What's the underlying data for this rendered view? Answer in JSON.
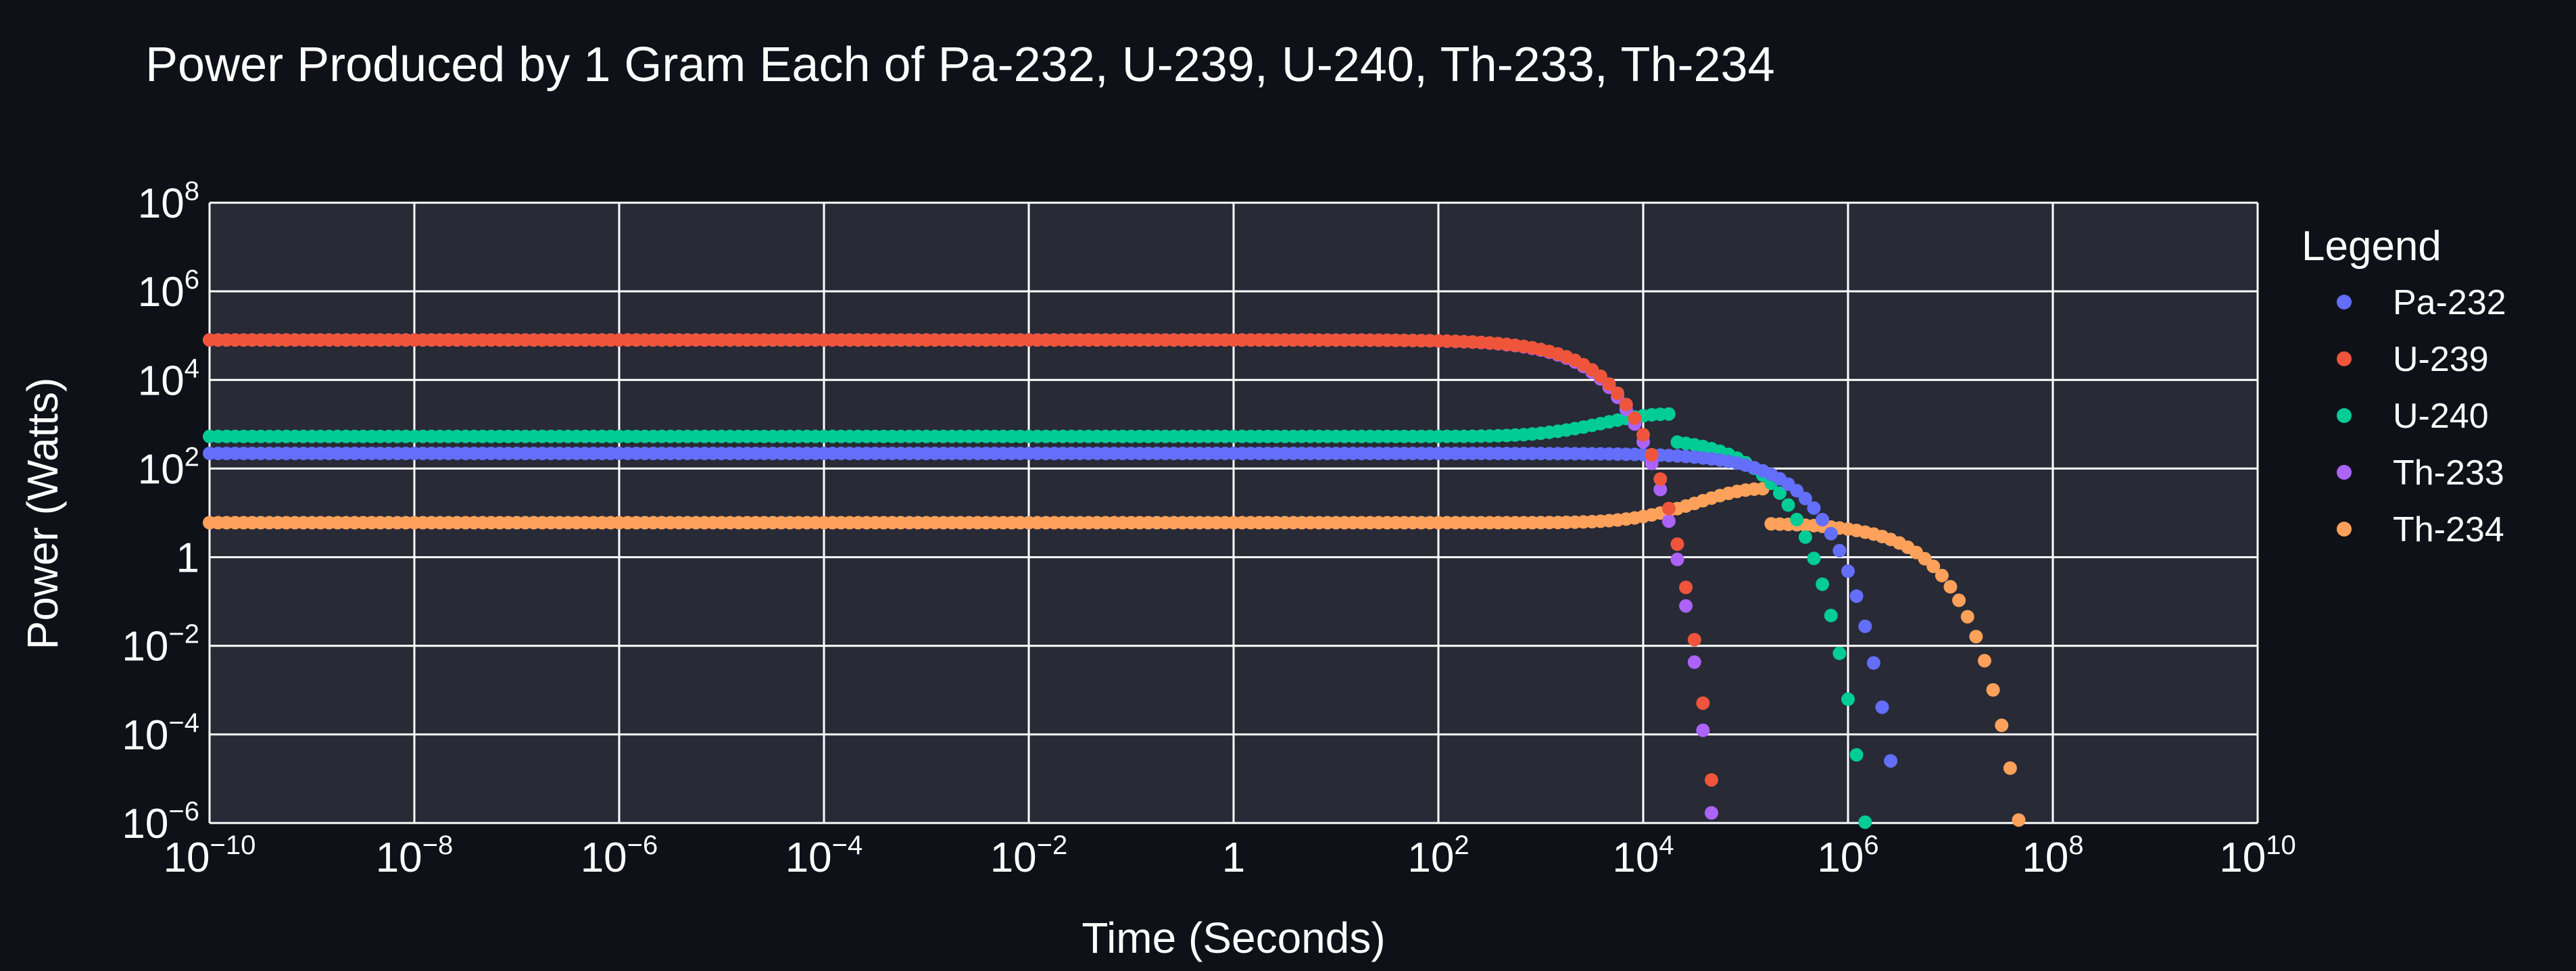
{
  "chart_data": {
    "type": "scatter",
    "title": "Power Produced by 1 Gram Each of Pa-232, U-239, U-240, Th-233, Th-234",
    "xlabel": "Time (Seconds)",
    "ylabel": "Power (Watts)",
    "x_scale": "log",
    "y_scale": "log",
    "xlim": [
      1e-10,
      10000000000.0
    ],
    "ylim": [
      1e-06,
      100000000.0
    ],
    "grid": true,
    "legend_title": "Legend",
    "legend_position": "right",
    "x_ticks": [
      {
        "base": "10",
        "exp": "−10"
      },
      {
        "base": "10",
        "exp": "−8"
      },
      {
        "base": "10",
        "exp": "−6"
      },
      {
        "base": "10",
        "exp": "−4"
      },
      {
        "base": "10",
        "exp": "−2"
      },
      {
        "base": "1",
        "exp": ""
      },
      {
        "base": "10",
        "exp": "2"
      },
      {
        "base": "10",
        "exp": "4"
      },
      {
        "base": "10",
        "exp": "6"
      },
      {
        "base": "10",
        "exp": "8"
      },
      {
        "base": "10",
        "exp": "10"
      }
    ],
    "y_ticks": [
      {
        "base": "10",
        "exp": "−6"
      },
      {
        "base": "10",
        "exp": "−4"
      },
      {
        "base": "10",
        "exp": "−2"
      },
      {
        "base": "1",
        "exp": ""
      },
      {
        "base": "10",
        "exp": "2"
      },
      {
        "base": "10",
        "exp": "4"
      },
      {
        "base": "10",
        "exp": "6"
      },
      {
        "base": "10",
        "exp": "8"
      }
    ],
    "series": [
      {
        "name": "Pa-232",
        "color": "#636efa",
        "initial_power_w": 220,
        "half_life_s": 113200
      },
      {
        "name": "U-239",
        "color": "#ef553b",
        "initial_power_w": 80000,
        "half_life_s": 1407
      },
      {
        "name": "U-240",
        "color": "#00cc96",
        "initial_power_w": 530,
        "half_life_s": 50760
      },
      {
        "name": "Th-233",
        "color": "#ab63fa",
        "initial_power_w": 80000,
        "half_life_s": 1309
      },
      {
        "name": "Th-234",
        "color": "#ffa15a",
        "initial_power_w": 6,
        "half_life_s": 2082000
      }
    ],
    "notes_visible": [],
    "sampling": {
      "log10_t_start": -10,
      "log10_t_end": 8,
      "points_per_decade": 12
    },
    "curve_bumps": {
      "U-240": {
        "peak_w": 1700,
        "peak_t_s": 18000
      },
      "Th-234": {
        "peak_w": 35,
        "peak_t_s": 150000
      }
    }
  }
}
